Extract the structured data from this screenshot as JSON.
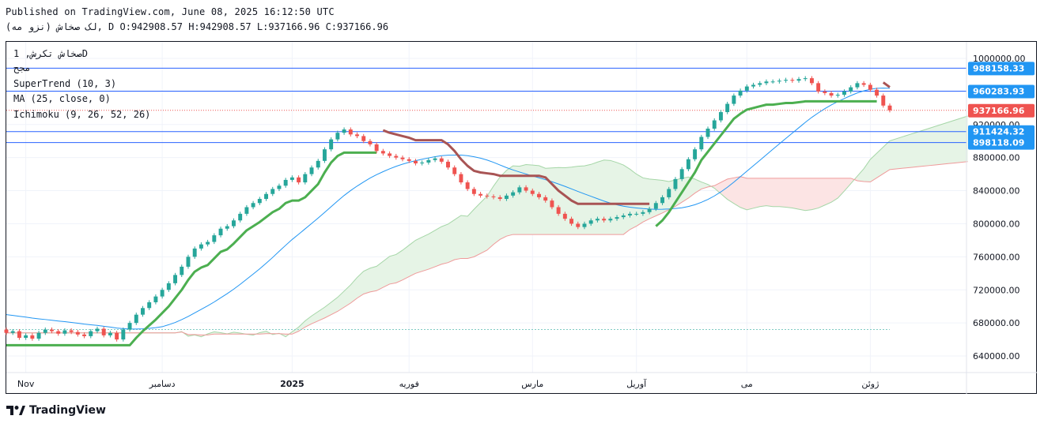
{
  "header": {
    "published": "Published on TradingView.com, June 08, 2025 16:12:50 UTC",
    "ohlc_line": "لک صخاش (نزو مه), D O:942908.57 H:942908.57 L:937166.96 C:937166.96"
  },
  "legend": {
    "symbol": "صخاش تکرش, 1D",
    "subtitle": "مجح",
    "supertrend": "SuperTrend (10, 3)",
    "ma": "MA (25, close, 0)",
    "ichimoku": "Ichimoku (9, 26, 52, 26)"
  },
  "logo": {
    "text": "TradingView"
  },
  "colors": {
    "up": "#26a69a",
    "down": "#ef5350",
    "st_up": "#4caf50",
    "st_down": "#a85454",
    "ma": "#2196f3",
    "cloud_green": "#e6f4e6",
    "cloud_red": "#fce4e4",
    "hline": "#2962ff",
    "last_badge": "#ef5350",
    "level_badge": "#2196f3"
  },
  "chart_data": {
    "type": "candlestick",
    "y_axis": {
      "min": 620000,
      "max": 1020000,
      "ticks": [
        "640000.00",
        "680000.00",
        "720000.00",
        "760000.00",
        "800000.00",
        "840000.00",
        "880000.00",
        "920000.00",
        "960000.00",
        "1000000.00"
      ],
      "tick_values": [
        640000,
        680000,
        720000,
        760000,
        800000,
        840000,
        880000,
        920000,
        960000,
        1000000
      ]
    },
    "x_axis": {
      "labels": [
        "Nov",
        "دسامبر",
        "2025",
        "فوریه",
        "مارس",
        "آوریل",
        "می",
        "ژوئن"
      ],
      "label_index": [
        3,
        24,
        44,
        62,
        81,
        97,
        114,
        133
      ]
    },
    "bar_count": 137,
    "closes": [
      668000,
      670000,
      662000,
      665000,
      661000,
      668000,
      672000,
      670000,
      667000,
      671000,
      669000,
      666000,
      664000,
      670000,
      673000,
      665000,
      668000,
      660000,
      672000,
      680000,
      690000,
      698000,
      705000,
      712000,
      720000,
      728000,
      738000,
      748000,
      760000,
      770000,
      775000,
      778000,
      786000,
      794000,
      797000,
      804000,
      812000,
      820000,
      825000,
      830000,
      836000,
      842000,
      846000,
      853000,
      856000,
      850000,
      860000,
      868000,
      876000,
      890000,
      902000,
      910000,
      914000,
      908000,
      906000,
      900000,
      896000,
      888000,
      885000,
      882000,
      880000,
      878000,
      876000,
      873000,
      874000,
      877000,
      879000,
      875000,
      868000,
      860000,
      850000,
      842000,
      836000,
      834000,
      833000,
      832000,
      830000,
      834000,
      838000,
      844000,
      840000,
      836000,
      832000,
      828000,
      820000,
      812000,
      806000,
      800000,
      796000,
      800000,
      804000,
      806000,
      804000,
      806000,
      808000,
      810000,
      812000,
      812000,
      814000,
      818000,
      825000,
      832000,
      842000,
      854000,
      866000,
      878000,
      890000,
      905000,
      915000,
      925000,
      935000,
      945000,
      955000,
      961000,
      966000,
      968000,
      970000,
      972000,
      972000,
      973000,
      974000,
      973000,
      975000,
      976000,
      970000,
      960000,
      958000,
      955000,
      956000,
      960000,
      965000,
      970000,
      968000,
      962000,
      955000,
      942908,
      937167
    ],
    "ma_start": 690000,
    "supertrend_note": "trailing stop; green below price in uptrends, brown above in downtrends",
    "ichimoku_note": "cloud shaded green when span A above span B, red otherwise",
    "horizontal_levels": [
      "988158.33",
      "960283.93",
      "937166.96",
      "911424.32",
      "898118.09"
    ],
    "horizontal_values": [
      988158.33,
      960283.93,
      937166.96,
      911424.32,
      898118.09
    ],
    "last_price": "937166.96",
    "last_value": 937166.96,
    "baseline_value": 672000
  }
}
